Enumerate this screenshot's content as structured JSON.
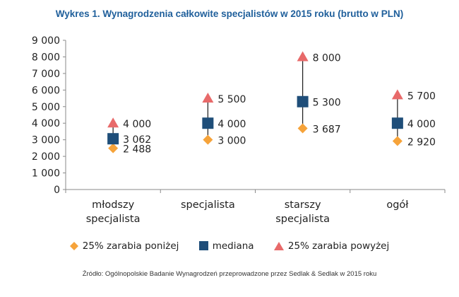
{
  "chart_data": {
    "type": "scatter",
    "title": "Wykres 1. Wynagrodzenia całkowite specjalistów w 2015 roku (brutto w PLN)",
    "categories": [
      "młodszy\nspecjalista",
      "specjalista",
      "starszy\nspecjalista",
      "ogół"
    ],
    "y_ticks": [
      "0",
      "1 000",
      "2 000",
      "3 000",
      "4 000",
      "5 000",
      "6 000",
      "7 000",
      "8 000",
      "9 000"
    ],
    "ylim": [
      0,
      9000
    ],
    "grid": false,
    "legend_position": "bottom",
    "series": [
      {
        "name": "25% zarabia poniżej",
        "marker": "diamond",
        "color": "#f6a33a",
        "values": [
          2488,
          3000,
          3687,
          2920
        ],
        "labels": [
          "2 488",
          "3 000",
          "3 687",
          "2 920"
        ]
      },
      {
        "name": "mediana",
        "marker": "square",
        "color": "#1f4e79",
        "values": [
          3062,
          4000,
          5300,
          4000
        ],
        "labels": [
          "3 062",
          "4 000",
          "5 300",
          "4 000"
        ]
      },
      {
        "name": "25% zarabia powyżej",
        "marker": "triangle",
        "color": "#e86a6a",
        "values": [
          4000,
          5500,
          8000,
          5700
        ],
        "labels": [
          "4 000",
          "5 500",
          "8 000",
          "5 700"
        ]
      }
    ],
    "source": "Źródło: Ogólnopolskie Badanie Wynagrodzeń przeprowadzone przez Sedlak & Sedlak w 2015 roku"
  }
}
